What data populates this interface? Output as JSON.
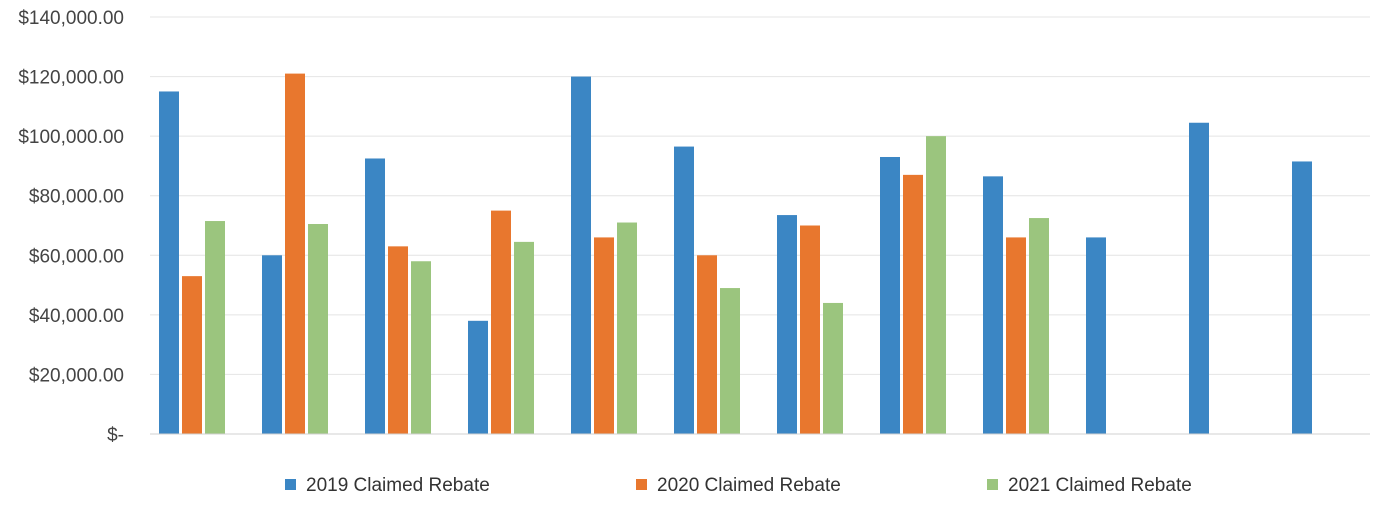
{
  "chart_data": {
    "type": "bar",
    "title": "",
    "xlabel": "",
    "ylabel": "",
    "categories": [
      "",
      "",
      "",
      "",
      "",
      "",
      "",
      "",
      "",
      "",
      "",
      ""
    ],
    "ylim": [
      0,
      140000
    ],
    "y_ticks": [
      0,
      20000,
      40000,
      60000,
      80000,
      100000,
      120000,
      140000
    ],
    "y_tick_labels": [
      "$-",
      "$20,000.00",
      "$40,000.00",
      "$60,000.00",
      "$80,000.00",
      "$100,000.00",
      "$120,000.00",
      "$140,000.00"
    ],
    "grid": true,
    "legend_position": "bottom",
    "series": [
      {
        "name": "2019 Claimed Rebate",
        "color": "#3b86c4",
        "values": [
          115000,
          60000,
          92500,
          38000,
          120000,
          96500,
          73500,
          93000,
          86500,
          66000,
          104500,
          91500
        ]
      },
      {
        "name": "2020 Claimed Rebate",
        "color": "#e8772e",
        "values": [
          53000,
          121000,
          63000,
          75000,
          66000,
          60000,
          70000,
          87000,
          66000,
          null,
          null,
          null
        ]
      },
      {
        "name": "2021 Claimed Rebate",
        "color": "#9bc57e",
        "values": [
          71500,
          70500,
          58000,
          64500,
          71000,
          49000,
          44000,
          100000,
          72500,
          null,
          null,
          null
        ]
      }
    ]
  }
}
